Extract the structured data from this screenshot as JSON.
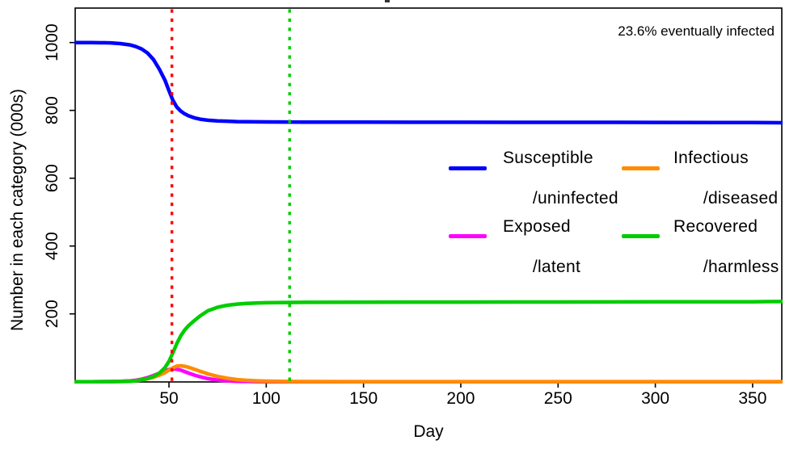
{
  "chart_data": {
    "type": "line",
    "title": "",
    "xlabel": "Day",
    "ylabel": "Number in each category (000s)",
    "annotation": "23.6% eventually infected",
    "xlim": [
      0,
      365
    ],
    "ylim": [
      0,
      1100
    ],
    "grid": false,
    "legend_position": "center-right",
    "x_ticks": [
      50,
      100,
      150,
      200,
      250,
      300,
      350
    ],
    "y_ticks": [
      200,
      400,
      600,
      800,
      1000
    ],
    "x": [
      1,
      10,
      20,
      25,
      30,
      33,
      36,
      39,
      42,
      45,
      48,
      50,
      52,
      54,
      56,
      58,
      60,
      63,
      66,
      70,
      75,
      80,
      85,
      90,
      95,
      100,
      110,
      120,
      150,
      200,
      250,
      300,
      330,
      350,
      358,
      365
    ],
    "series": [
      {
        "name": "Susceptible /uninfected",
        "color": "#0000FF",
        "values": [
          1000,
          1000,
          999,
          997,
          993,
          988,
          981,
          969,
          950,
          922,
          888,
          858,
          830,
          810,
          798,
          790,
          784,
          778,
          774,
          771,
          769,
          768,
          767,
          766.5,
          766.2,
          766,
          765.8,
          765.5,
          765.2,
          765,
          764.8,
          764.5,
          764.3,
          764.2,
          763.8,
          763.5
        ]
      },
      {
        "name": "Exposed /latent",
        "color": "#FF00FF",
        "values": [
          0,
          0,
          0.4,
          1,
          2.5,
          4.5,
          7.5,
          12,
          18,
          25,
          32,
          36,
          38,
          37,
          34,
          30,
          25.5,
          19.5,
          14.5,
          9,
          4.8,
          2.5,
          1.3,
          0.6,
          0.3,
          0.1,
          0,
          0,
          0,
          0,
          0,
          0,
          0,
          0,
          0,
          0
        ]
      },
      {
        "name": "Infectious /diseased",
        "color": "#FF8C00",
        "values": [
          0,
          0,
          0.3,
          0.7,
          1.8,
          3.2,
          5.5,
          8.5,
          13,
          19,
          27,
          34,
          41,
          46,
          47,
          45.5,
          42.5,
          37,
          31,
          23,
          15.5,
          10,
          6.3,
          4,
          2.5,
          1.6,
          0.8,
          0.5,
          0.3,
          0.3,
          0.3,
          0.3,
          0.3,
          0.3,
          0.3,
          0.3
        ]
      },
      {
        "name": "Recovered /harmless",
        "color": "#00CD00",
        "values": [
          0,
          0,
          0.2,
          0.5,
          1.2,
          2.8,
          5.5,
          9.5,
          15.5,
          25,
          42,
          60,
          85,
          112,
          135,
          152,
          165,
          180,
          194,
          209,
          219.5,
          225.5,
          228.8,
          230.8,
          232,
          232.8,
          233.5,
          234,
          234.5,
          234.8,
          235.1,
          235.4,
          235.6,
          235.8,
          236.2,
          236.5
        ]
      }
    ],
    "vlines": [
      {
        "x": 51.5,
        "color": "#FF0000",
        "style": "dotted"
      },
      {
        "x": 112,
        "color": "#00CD00",
        "style": "dotted"
      }
    ]
  },
  "legend": {
    "items": [
      {
        "line1": "Susceptible",
        "line2": "/uninfected",
        "color": "#0000FF"
      },
      {
        "line1": "Infectious",
        "line2": "/diseased",
        "color": "#FF8C00"
      },
      {
        "line1": "Exposed",
        "line2": "/latent",
        "color": "#FF00FF"
      },
      {
        "line1": "Recovered",
        "line2": "/harmless",
        "color": "#00CD00"
      }
    ]
  }
}
